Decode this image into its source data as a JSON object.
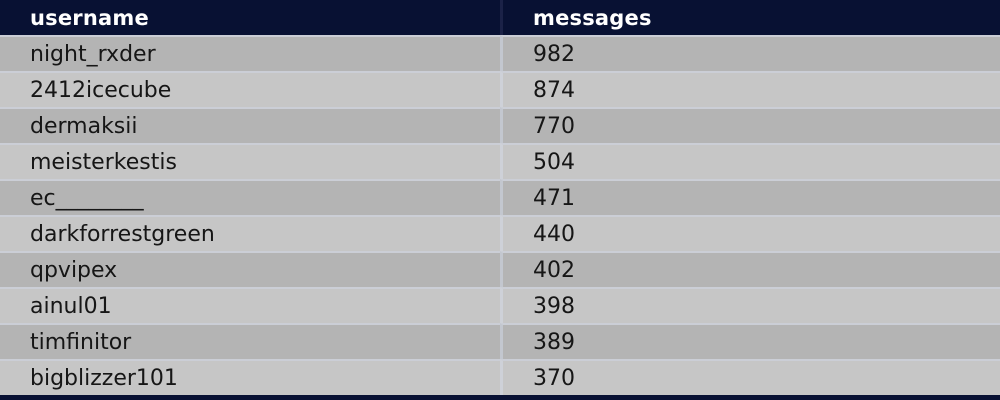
{
  "chart_data": {
    "type": "table",
    "title": "",
    "columns": [
      "username",
      "messages"
    ],
    "rows": [
      {
        "username": "night_rxder",
        "messages": 982
      },
      {
        "username": "2412icecube",
        "messages": 874
      },
      {
        "username": "dermaksii",
        "messages": 770
      },
      {
        "username": "meisterkestis",
        "messages": 504
      },
      {
        "username": "ec________",
        "messages": 471
      },
      {
        "username": "darkforrestgreen",
        "messages": 440
      },
      {
        "username": "qpvipex",
        "messages": 402
      },
      {
        "username": "ainul01",
        "messages": 398
      },
      {
        "username": "timfinitor",
        "messages": 389
      },
      {
        "username": "bigblizzer101",
        "messages": 370
      }
    ],
    "layout": {
      "header_position": "top",
      "zebra_striping": true,
      "sort_order": "messages descending",
      "grid": "horizontal separators and single vertical column divider"
    }
  },
  "colors": {
    "header_bg": "#081133",
    "header_text": "#ffffff",
    "row_odd_bg": "#b4b4b4",
    "row_even_bg": "#c6c6c6",
    "body_text": "#161616",
    "separator": "#cbced6",
    "divider_header": "#1b2247",
    "divider_odd": "#c3c7cf",
    "divider_even": "#ced1d8"
  }
}
